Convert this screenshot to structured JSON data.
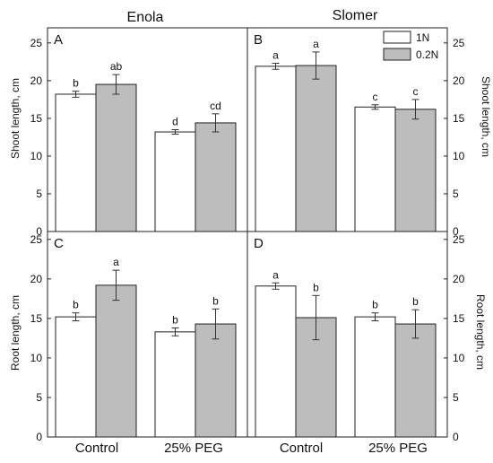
{
  "columns": [
    "Enola",
    "Slomer"
  ],
  "legend": {
    "items": [
      {
        "label": "1N",
        "color": "#ffffff"
      },
      {
        "label": "0.2N",
        "color": "#bdbdbd"
      }
    ],
    "placement": "top-right of panel B"
  },
  "y_axis_label_top": "Shoot length, cm",
  "y_axis_label_bottom": "Root length, cm",
  "y_ticks": [
    "0",
    "5",
    "10",
    "15",
    "20",
    "25"
  ],
  "categories": [
    "Control",
    "25% PEG"
  ],
  "chart_data": [
    {
      "type": "bar",
      "panel": "A",
      "title": "Enola",
      "ylabel": "Shoot length, cm",
      "categories": [
        "Control",
        "25% PEG"
      ],
      "ylim": [
        0,
        27
      ],
      "series": [
        {
          "name": "1N",
          "values": [
            18.2,
            13.2
          ],
          "errors": [
            0.4,
            0.3
          ],
          "letters": [
            "b",
            "d"
          ]
        },
        {
          "name": "0.2N",
          "values": [
            19.5,
            14.4
          ],
          "errors": [
            1.3,
            1.2
          ],
          "letters": [
            "ab",
            "cd"
          ]
        }
      ]
    },
    {
      "type": "bar",
      "panel": "B",
      "title": "Slomer",
      "ylabel": "Shoot length, cm",
      "categories": [
        "Control",
        "25% PEG"
      ],
      "ylim": [
        0,
        27
      ],
      "series": [
        {
          "name": "1N",
          "values": [
            21.9,
            16.5
          ],
          "errors": [
            0.4,
            0.3
          ],
          "letters": [
            "a",
            "c"
          ]
        },
        {
          "name": "0.2N",
          "values": [
            22.0,
            16.2
          ],
          "errors": [
            1.8,
            1.3
          ],
          "letters": [
            "a",
            "c"
          ]
        }
      ]
    },
    {
      "type": "bar",
      "panel": "C",
      "ylabel": "Root length, cm",
      "categories": [
        "Control",
        "25% PEG"
      ],
      "ylim": [
        0,
        26
      ],
      "series": [
        {
          "name": "1N",
          "values": [
            15.2,
            13.3
          ],
          "errors": [
            0.5,
            0.5
          ],
          "letters": [
            "b",
            "b"
          ]
        },
        {
          "name": "0.2N",
          "values": [
            19.2,
            14.3
          ],
          "errors": [
            1.9,
            1.9
          ],
          "letters": [
            "a",
            "b"
          ]
        }
      ]
    },
    {
      "type": "bar",
      "panel": "D",
      "ylabel": "Root length, cm",
      "categories": [
        "Control",
        "25% PEG"
      ],
      "ylim": [
        0,
        26
      ],
      "series": [
        {
          "name": "1N",
          "values": [
            19.1,
            15.2
          ],
          "errors": [
            0.4,
            0.5
          ],
          "letters": [
            "a",
            "b"
          ]
        },
        {
          "name": "0.2N",
          "values": [
            15.1,
            14.3
          ],
          "errors": [
            2.8,
            1.8
          ],
          "letters": [
            "b",
            "b"
          ]
        }
      ]
    }
  ]
}
